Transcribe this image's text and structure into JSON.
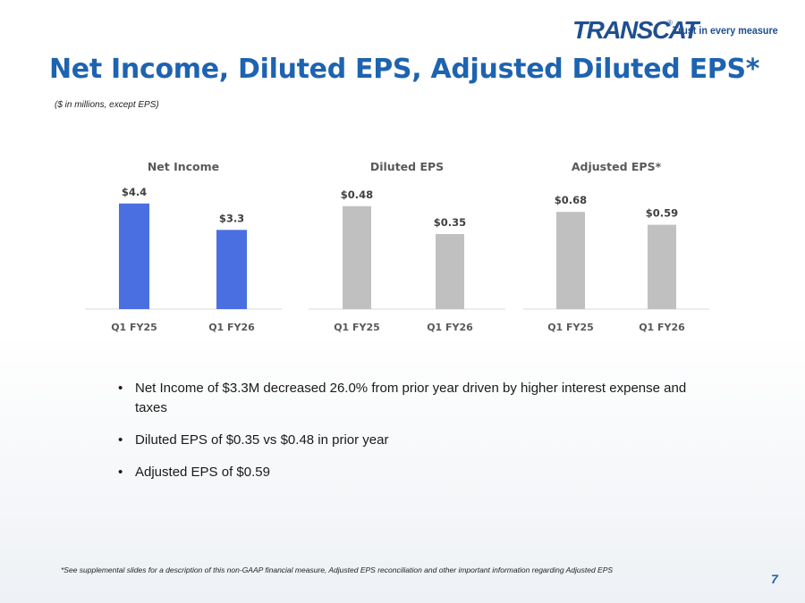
{
  "brand": {
    "name": "TRANSCAT",
    "registered_mark": "®",
    "tagline": "Trust in every measure",
    "color": "#1f4f8f"
  },
  "slide": {
    "title": "Net Income, Diluted EPS, Adjusted Diluted EPS*",
    "subtitle": "($ in millions, except EPS)",
    "title_color": "#1e63b0",
    "page_number": "7"
  },
  "chart_data": [
    {
      "type": "bar",
      "title": "Net Income",
      "categories": [
        "Q1 FY25",
        "Q1 FY26"
      ],
      "values": [
        4.4,
        3.3
      ],
      "value_labels": [
        "$4.4",
        "$3.3"
      ],
      "ylim": [
        0,
        5.36
      ],
      "color": "#4a6fe0"
    },
    {
      "type": "bar",
      "title": "Diluted EPS",
      "categories": [
        "Q1 FY25",
        "Q1 FY26"
      ],
      "values": [
        0.48,
        0.35
      ],
      "value_labels": [
        "$0.48",
        "$0.35"
      ],
      "ylim": [
        0,
        0.6
      ],
      "color": "#c0c0c0"
    },
    {
      "type": "bar",
      "title": "Adjusted EPS*",
      "categories": [
        "Q1 FY25",
        "Q1 FY26"
      ],
      "values": [
        0.68,
        0.59
      ],
      "value_labels": [
        "$0.68",
        "$0.59"
      ],
      "ylim": [
        0,
        0.9
      ],
      "color": "#c0c0c0"
    }
  ],
  "bullets": [
    "Net Income of $3.3M decreased 26.0% from prior year driven by higher interest expense and taxes",
    "Diluted EPS of $0.35 vs $0.48 in prior year",
    "Adjusted EPS of $0.59"
  ],
  "footnote": "*See supplemental slides for a description of this non-GAAP financial measure, Adjusted EPS reconciliation and other important information regarding Adjusted EPS"
}
